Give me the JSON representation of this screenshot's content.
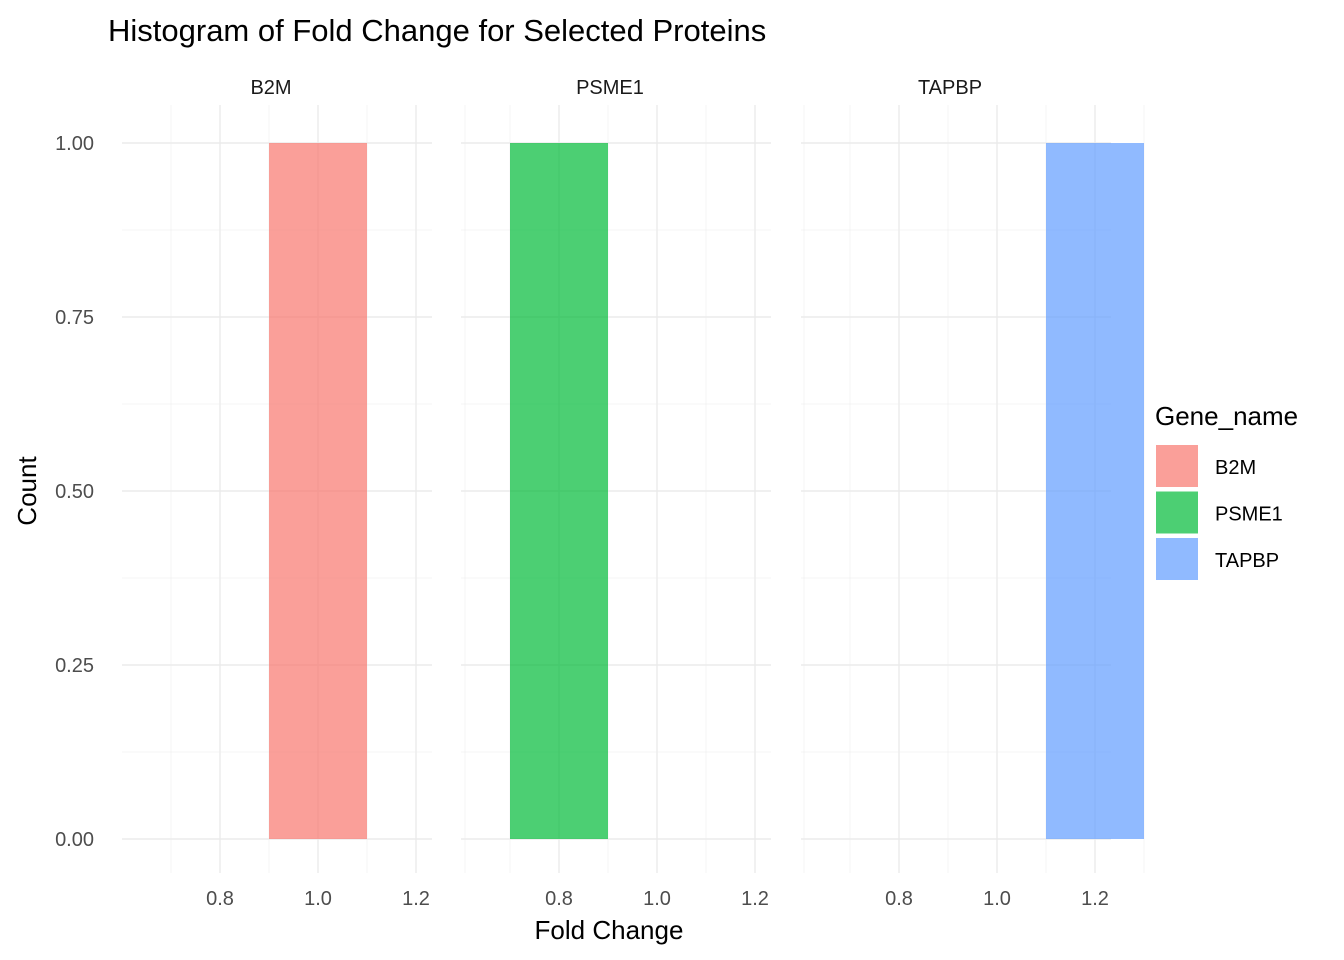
{
  "chart_data": {
    "type": "bar",
    "title": "Histogram of Fold Change for Selected Proteins",
    "xlabel": "Fold Change",
    "ylabel": "Count",
    "xlim": [
      0.7,
      1.3
    ],
    "ylim": [
      0,
      1.05
    ],
    "x_ticks": [
      "0.8",
      "1.0",
      "1.2"
    ],
    "y_ticks": [
      "0.00",
      "0.25",
      "0.50",
      "0.75",
      "1.00"
    ],
    "grid": true,
    "bin_width": 0.2,
    "legend": {
      "title": "Gene_name",
      "position": "right",
      "entries": [
        {
          "label": "B2M",
          "color": "#F8766D"
        },
        {
          "label": "PSME1",
          "color": "#00BA38"
        },
        {
          "label": "TAPBP",
          "color": "#619CFF"
        }
      ]
    },
    "facets": [
      {
        "label": "B2M",
        "color": "#F8766D",
        "bins": [
          {
            "x0": 0.9,
            "x1": 1.1,
            "count": 1
          }
        ]
      },
      {
        "label": "PSME1",
        "color": "#00BA38",
        "bins": [
          {
            "x0": 0.7,
            "x1": 0.9,
            "count": 1
          }
        ]
      },
      {
        "label": "TAPBP",
        "color": "#619CFF",
        "bins": [
          {
            "x0": 1.1,
            "x1": 1.3,
            "count": 1
          }
        ]
      }
    ]
  }
}
